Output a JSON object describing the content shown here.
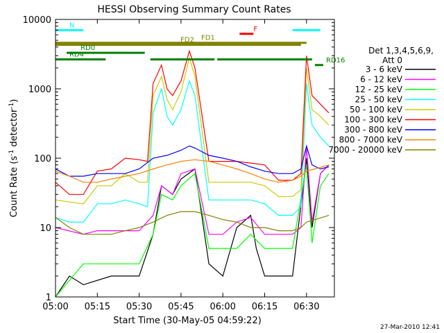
{
  "chart_data": {
    "type": "line",
    "title": "HESSI Observing Summary Count Rates",
    "xlabel": "Start Time (30-May-05 04:59:22)",
    "ylabel_main": "Count Rate (s",
    "ylabel_sup1": "-1",
    "ylabel_mid": " detector",
    "ylabel_sup2": "-1",
    "ylabel_end": ")",
    "yscale": "log",
    "ylim": [
      1,
      10000
    ],
    "xlim_minutes": [
      0,
      100
    ],
    "x_ticks": [
      {
        "t": 0,
        "label": "05:00"
      },
      {
        "t": 15,
        "label": "05:15"
      },
      {
        "t": 30,
        "label": "05:30"
      },
      {
        "t": 45,
        "label": "05:45"
      },
      {
        "t": 60,
        "label": "06:00"
      },
      {
        "t": 75,
        "label": "06:15"
      },
      {
        "t": 90,
        "label": "06:30"
      }
    ],
    "y_ticks": [
      {
        "v": 1,
        "label": "1"
      },
      {
        "v": 10,
        "label": "10"
      },
      {
        "v": 100,
        "label": "100"
      },
      {
        "v": 1000,
        "label": "1000"
      },
      {
        "v": 10000,
        "label": "10000"
      }
    ],
    "legend": {
      "title_line1": "Det 1,3,4,5,6,9,",
      "title_line2": "Att 0",
      "placement": "right"
    },
    "footer_stamp": "27-Mar-2010 12:41",
    "series": [
      {
        "name": "3 - 6 keV",
        "color": "#000000",
        "points": [
          [
            0,
            1
          ],
          [
            5,
            2
          ],
          [
            10,
            1.5
          ],
          [
            20,
            2
          ],
          [
            30,
            2
          ],
          [
            35,
            8
          ],
          [
            38,
            40
          ],
          [
            42,
            30
          ],
          [
            45,
            50
          ],
          [
            50,
            70
          ],
          [
            55,
            3
          ],
          [
            60,
            2
          ],
          [
            65,
            10
          ],
          [
            70,
            15
          ],
          [
            72,
            5
          ],
          [
            75,
            2
          ],
          [
            80,
            2
          ],
          [
            85,
            2
          ],
          [
            90,
            100
          ],
          [
            92,
            10
          ],
          [
            95,
            60
          ],
          [
            98,
            80
          ]
        ]
      },
      {
        "name": "6 - 12 keV",
        "color": "#ff00ff",
        "points": [
          [
            0,
            10
          ],
          [
            10,
            8
          ],
          [
            15,
            9
          ],
          [
            20,
            9
          ],
          [
            25,
            9
          ],
          [
            30,
            9
          ],
          [
            35,
            15
          ],
          [
            38,
            40
          ],
          [
            42,
            30
          ],
          [
            45,
            60
          ],
          [
            50,
            70
          ],
          [
            55,
            8
          ],
          [
            60,
            8
          ],
          [
            65,
            12
          ],
          [
            70,
            14
          ],
          [
            75,
            8
          ],
          [
            80,
            8
          ],
          [
            85,
            8
          ],
          [
            88,
            10
          ],
          [
            90,
            150
          ],
          [
            92,
            12
          ],
          [
            95,
            60
          ],
          [
            98,
            80
          ]
        ]
      },
      {
        "name": "12 - 25 keV",
        "color": "#00ff00",
        "points": [
          [
            0,
            1
          ],
          [
            10,
            3
          ],
          [
            15,
            3
          ],
          [
            20,
            3
          ],
          [
            25,
            3
          ],
          [
            30,
            3
          ],
          [
            35,
            8
          ],
          [
            38,
            30
          ],
          [
            42,
            25
          ],
          [
            45,
            40
          ],
          [
            50,
            60
          ],
          [
            55,
            5
          ],
          [
            60,
            5
          ],
          [
            65,
            5
          ],
          [
            70,
            8
          ],
          [
            75,
            5
          ],
          [
            80,
            5
          ],
          [
            85,
            5
          ],
          [
            90,
            80
          ],
          [
            92,
            6
          ],
          [
            95,
            40
          ],
          [
            98,
            60
          ]
        ]
      },
      {
        "name": "25 - 50 keV",
        "color": "#00ffff",
        "points": [
          [
            0,
            14
          ],
          [
            5,
            12
          ],
          [
            10,
            12
          ],
          [
            15,
            22
          ],
          [
            20,
            22
          ],
          [
            25,
            25
          ],
          [
            30,
            22
          ],
          [
            33,
            20
          ],
          [
            35,
            450
          ],
          [
            38,
            1000
          ],
          [
            40,
            400
          ],
          [
            42,
            300
          ],
          [
            45,
            500
          ],
          [
            48,
            1300
          ],
          [
            50,
            800
          ],
          [
            55,
            25
          ],
          [
            58,
            25
          ],
          [
            60,
            25
          ],
          [
            65,
            25
          ],
          [
            70,
            25
          ],
          [
            75,
            22
          ],
          [
            80,
            15
          ],
          [
            85,
            15
          ],
          [
            88,
            20
          ],
          [
            90,
            1200
          ],
          [
            92,
            300
          ],
          [
            95,
            200
          ],
          [
            98,
            150
          ]
        ]
      },
      {
        "name": "50 - 100 keV",
        "color": "#cccc00",
        "points": [
          [
            0,
            25
          ],
          [
            10,
            22
          ],
          [
            15,
            40
          ],
          [
            20,
            40
          ],
          [
            25,
            60
          ],
          [
            30,
            45
          ],
          [
            33,
            45
          ],
          [
            35,
            800
          ],
          [
            38,
            1500
          ],
          [
            40,
            700
          ],
          [
            42,
            500
          ],
          [
            45,
            900
          ],
          [
            48,
            2800
          ],
          [
            50,
            1500
          ],
          [
            55,
            45
          ],
          [
            60,
            45
          ],
          [
            65,
            45
          ],
          [
            70,
            45
          ],
          [
            75,
            40
          ],
          [
            80,
            28
          ],
          [
            85,
            28
          ],
          [
            88,
            35
          ],
          [
            90,
            2000
          ],
          [
            92,
            500
          ],
          [
            95,
            400
          ],
          [
            98,
            300
          ]
        ]
      },
      {
        "name": "100 - 300 keV",
        "color": "#ff0000",
        "points": [
          [
            0,
            45
          ],
          [
            5,
            30
          ],
          [
            10,
            30
          ],
          [
            15,
            65
          ],
          [
            20,
            70
          ],
          [
            25,
            100
          ],
          [
            30,
            95
          ],
          [
            33,
            90
          ],
          [
            35,
            1200
          ],
          [
            38,
            2200
          ],
          [
            40,
            1000
          ],
          [
            42,
            800
          ],
          [
            45,
            1300
          ],
          [
            48,
            3500
          ],
          [
            50,
            2000
          ],
          [
            55,
            90
          ],
          [
            60,
            90
          ],
          [
            65,
            90
          ],
          [
            70,
            85
          ],
          [
            75,
            80
          ],
          [
            80,
            48
          ],
          [
            85,
            48
          ],
          [
            88,
            60
          ],
          [
            90,
            3000
          ],
          [
            92,
            800
          ],
          [
            95,
            600
          ],
          [
            98,
            450
          ]
        ]
      },
      {
        "name": "300 - 800 keV",
        "color": "#0000ff",
        "points": [
          [
            0,
            70
          ],
          [
            5,
            55
          ],
          [
            10,
            55
          ],
          [
            15,
            60
          ],
          [
            20,
            60
          ],
          [
            25,
            60
          ],
          [
            30,
            70
          ],
          [
            35,
            100
          ],
          [
            40,
            110
          ],
          [
            45,
            130
          ],
          [
            48,
            150
          ],
          [
            50,
            140
          ],
          [
            55,
            110
          ],
          [
            60,
            100
          ],
          [
            65,
            90
          ],
          [
            70,
            75
          ],
          [
            75,
            65
          ],
          [
            80,
            60
          ],
          [
            85,
            60
          ],
          [
            88,
            70
          ],
          [
            90,
            150
          ],
          [
            92,
            80
          ],
          [
            95,
            70
          ],
          [
            98,
            75
          ]
        ]
      },
      {
        "name": "800 - 7000 keV",
        "color": "#ff8000",
        "points": [
          [
            0,
            65
          ],
          [
            5,
            55
          ],
          [
            10,
            45
          ],
          [
            15,
            45
          ],
          [
            20,
            50
          ],
          [
            25,
            55
          ],
          [
            30,
            60
          ],
          [
            35,
            70
          ],
          [
            40,
            80
          ],
          [
            45,
            90
          ],
          [
            50,
            95
          ],
          [
            55,
            90
          ],
          [
            60,
            80
          ],
          [
            65,
            70
          ],
          [
            70,
            60
          ],
          [
            75,
            50
          ],
          [
            80,
            45
          ],
          [
            85,
            48
          ],
          [
            88,
            55
          ],
          [
            90,
            65
          ],
          [
            93,
            70
          ],
          [
            98,
            80
          ]
        ]
      },
      {
        "name": "7000 - 20000 keV",
        "color": "#808000",
        "points": [
          [
            0,
            14
          ],
          [
            5,
            10
          ],
          [
            10,
            8
          ],
          [
            15,
            8
          ],
          [
            20,
            8
          ],
          [
            25,
            9
          ],
          [
            30,
            10
          ],
          [
            35,
            12
          ],
          [
            40,
            15
          ],
          [
            45,
            17
          ],
          [
            50,
            17
          ],
          [
            55,
            15
          ],
          [
            60,
            13
          ],
          [
            65,
            12
          ],
          [
            70,
            10
          ],
          [
            75,
            10
          ],
          [
            80,
            9
          ],
          [
            85,
            9
          ],
          [
            88,
            10
          ],
          [
            90,
            12
          ],
          [
            93,
            13
          ],
          [
            98,
            15
          ]
        ]
      }
    ],
    "annotations": [
      {
        "label": "N",
        "color": "#00ffff",
        "segments": [
          [
            0,
            10
          ],
          [
            85,
            95
          ]
        ],
        "value": 7000
      },
      {
        "label": "FD1",
        "color": "#808000",
        "segments": [
          [
            0,
            90
          ]
        ],
        "value": 4600
      },
      {
        "label": "F",
        "color": "#ff0000",
        "segments": [
          [
            66,
            71
          ]
        ],
        "value": 6200
      },
      {
        "label": "FD2",
        "color": "#808000",
        "segments": [
          [
            0,
            88
          ]
        ],
        "value": 4300
      },
      {
        "label": "RD0",
        "color": "#008000",
        "segments": [
          [
            4,
            32
          ]
        ],
        "value": 3300
      },
      {
        "label": "RD4",
        "color": "#008000",
        "segments": [
          [
            0,
            18
          ],
          [
            34,
            57
          ],
          [
            58,
            92
          ]
        ],
        "value": 2650
      },
      {
        "label": "RD16",
        "color": "#008000",
        "segments": [
          [
            93,
            96
          ]
        ],
        "value": 2200
      }
    ]
  }
}
